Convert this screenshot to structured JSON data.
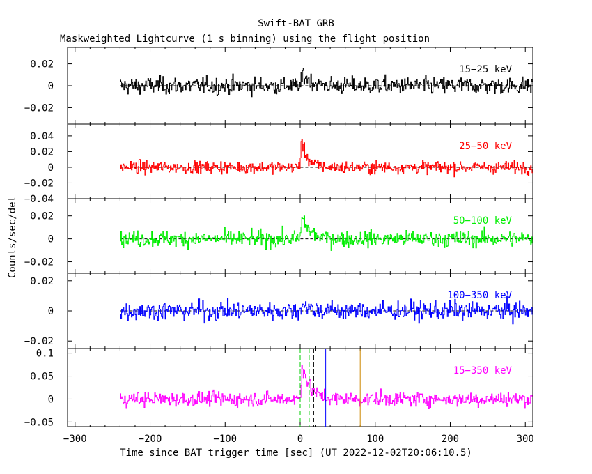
{
  "title": "Swift-BAT GRB",
  "subtitle": "Maskweighted Lightcurve (1 s binning) using the flight position",
  "xlabel": "Time since BAT trigger time [sec] (UT 2022-12-02T20:06:10.5)",
  "ylabel": "Counts/sec/det",
  "x_ticks": [
    "−300",
    "−200",
    "−100",
    "0",
    "100",
    "200",
    "300"
  ],
  "chart_data": {
    "type": "line",
    "xlim": [
      -310,
      310
    ],
    "data_range": [
      -240,
      310
    ],
    "binning_s": 1,
    "marker_lines": [
      {
        "x": 0,
        "color": "#00cc00",
        "style": "dashed"
      },
      {
        "x": 12,
        "color": "#00cc00",
        "style": "dashed"
      },
      {
        "x": 18,
        "color": "#000000",
        "style": "dashed"
      },
      {
        "x": 34,
        "color": "#0000ff",
        "style": "solid"
      },
      {
        "x": 80,
        "color": "#cc8800",
        "style": "solid"
      }
    ],
    "panels": [
      {
        "label": "15−25 keV",
        "color": "#000000",
        "ylim": [
          -0.035,
          0.035
        ],
        "yticks": [
          -0.02,
          0,
          0.02
        ],
        "ytick_labels": [
          "−0.02",
          "0",
          "0.02"
        ],
        "noise": 0.01,
        "peak": 0.012,
        "peak_time": 3,
        "decay": 10
      },
      {
        "label": "25−50 keV",
        "color": "#ff0000",
        "ylim": [
          -0.04,
          0.055
        ],
        "yticks": [
          -0.04,
          -0.02,
          0,
          0.02,
          0.04
        ],
        "ytick_labels": [
          "−0.04",
          "−0.02",
          "0",
          "0.02",
          "0.04"
        ],
        "noise": 0.01,
        "peak": 0.035,
        "peak_time": 1,
        "decay": 8
      },
      {
        "label": "50−100 keV",
        "color": "#00ee00",
        "ylim": [
          -0.03,
          0.035
        ],
        "yticks": [
          -0.02,
          0,
          0.02
        ],
        "ytick_labels": [
          "−0.02",
          "0",
          "0.02"
        ],
        "noise": 0.009,
        "peak": 0.02,
        "peak_time": 2,
        "decay": 10
      },
      {
        "label": "100−350 keV",
        "color": "#0000ff",
        "ylim": [
          -0.025,
          0.025
        ],
        "yticks": [
          -0.02,
          0,
          0.02
        ],
        "ytick_labels": [
          "−0.02",
          "0",
          "0.02"
        ],
        "noise": 0.008,
        "peak": 0.006,
        "peak_time": 2,
        "decay": 8
      },
      {
        "label": "15−350 keV",
        "color": "#ff00ff",
        "ylim": [
          -0.06,
          0.11
        ],
        "yticks": [
          -0.05,
          0,
          0.05,
          0.1
        ],
        "ytick_labels": [
          "−0.05",
          "0",
          "0.05",
          "0.1"
        ],
        "noise": 0.02,
        "peak": 0.08,
        "peak_time": 2,
        "decay": 10
      }
    ]
  }
}
